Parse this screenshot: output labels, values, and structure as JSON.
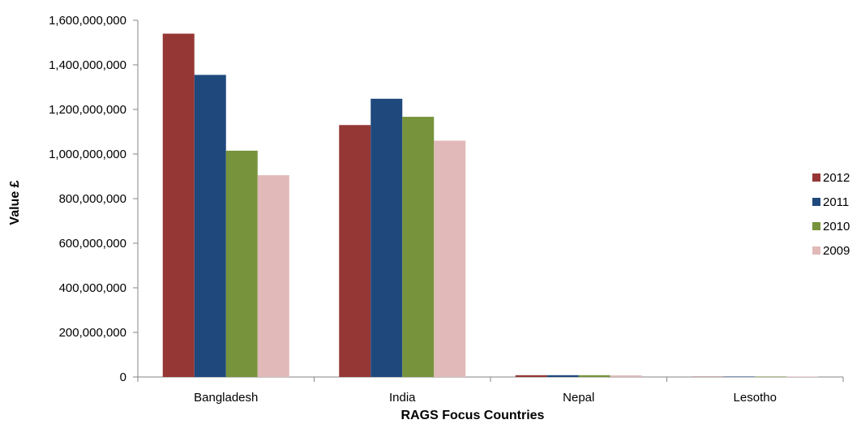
{
  "chart_data": {
    "type": "bar",
    "xlabel": "RAGS Focus Countries",
    "ylabel": "Value £",
    "categories": [
      "Bangladesh",
      "India",
      "Nepal",
      "Lesotho"
    ],
    "series": [
      {
        "name": "2012",
        "color": "#953735",
        "values": [
          1540000000,
          1130000000,
          8000000,
          1000000
        ]
      },
      {
        "name": "2011",
        "color": "#1F497D",
        "values": [
          1355000000,
          1248000000,
          8000000,
          2000000
        ]
      },
      {
        "name": "2010",
        "color": "#77933C",
        "values": [
          1015000000,
          1167000000,
          8000000,
          2000000
        ]
      },
      {
        "name": "2009",
        "color": "#E0B9B8",
        "values": [
          905000000,
          1060000000,
          7000000,
          2000000
        ]
      }
    ],
    "ylim": [
      0,
      1600000000
    ],
    "yticks": [
      {
        "value": 0,
        "label": "0"
      },
      {
        "value": 200000000,
        "label": "200,000,000"
      },
      {
        "value": 400000000,
        "label": "400,000,000"
      },
      {
        "value": 600000000,
        "label": "600,000,000"
      },
      {
        "value": 800000000,
        "label": "800,000,000"
      },
      {
        "value": 1000000000,
        "label": "1,000,000,000"
      },
      {
        "value": 1200000000,
        "label": "1,200,000,000"
      },
      {
        "value": 1400000000,
        "label": "1,400,000,000"
      },
      {
        "value": 1600000000,
        "label": "1,600,000,000"
      }
    ],
    "grid": false,
    "legend": "right"
  }
}
